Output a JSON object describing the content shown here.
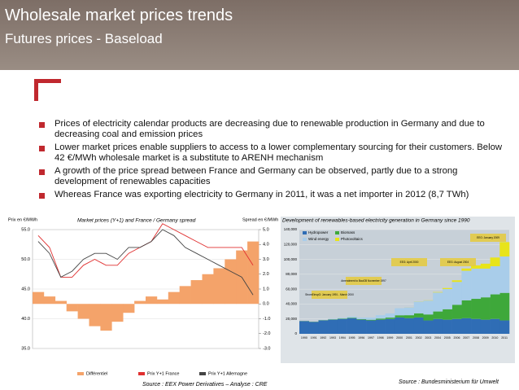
{
  "header": {
    "title": "Wholesale market prices trends",
    "subtitle": "Futures prices - Baseload"
  },
  "bullets": [
    "Prices of electricity calendar products are decreasing due to renewable production in Germany and due to decreasing coal and emission prices",
    "Lower market prices enable suppliers to access to a lower complementary sourcing for their customers. Below 42 €/MWh wholesale market is a substitute to ARENH mechanism",
    "A growth of the price spread between France and Germany can be observed, partly due to a strong development of renewables capacities",
    "Whereas France was exporting electricity to Germany in 2011, it was a net importer in 2012 (8,7 TWh)"
  ],
  "chart_data": [
    {
      "type": "line",
      "title": "Market prices (Y+1) and France / Germany spread",
      "ylabel": "Prix en €/MWh",
      "y2label": "Spread en €/MWh",
      "source": "Source : EEX Power Derivatives – Analyse : CRE",
      "ylim": [
        35,
        55
      ],
      "yticks": [
        {
          "value": 35,
          "label": "35.0"
        },
        {
          "value": 40,
          "label": "40.0"
        },
        {
          "value": 45,
          "label": "45.0"
        },
        {
          "value": 50,
          "label": "50.0"
        },
        {
          "value": 55,
          "label": "55.0"
        }
      ],
      "y2lim": [
        -3,
        5
      ],
      "y2ticks": [
        {
          "value": 5,
          "label": "5.0"
        },
        {
          "value": 4,
          "label": "4.0"
        },
        {
          "value": 3,
          "label": "3.0"
        },
        {
          "value": 2,
          "label": "2.0"
        },
        {
          "value": 1,
          "label": "1.0"
        },
        {
          "value": 0,
          "label": "0.0"
        },
        {
          "value": -1,
          "label": "-1.0"
        },
        {
          "value": -2,
          "label": "-2.0"
        },
        {
          "value": -3,
          "label": "-3.0"
        }
      ],
      "series": [
        {
          "name": "Différentiel",
          "color": "#f4a36a",
          "axis": "y2",
          "values": [
            0.8,
            0.5,
            0.2,
            -0.5,
            -1,
            -1.5,
            -1.8,
            -1.2,
            -0.6,
            0.2,
            0.5,
            0.3,
            0.8,
            1.2,
            1.6,
            2,
            2.4,
            3,
            3.6,
            4.2
          ]
        },
        {
          "name": "Prix Y+1 France",
          "color": "#e03030",
          "values": [
            54,
            52,
            47,
            47,
            49,
            50,
            49,
            49,
            51,
            52,
            53,
            56,
            55,
            54,
            53,
            52,
            52,
            52,
            52,
            49
          ]
        },
        {
          "name": "Prix Y+1 Allemagne",
          "color": "#444444",
          "values": [
            53,
            51,
            47,
            48,
            50,
            51,
            51,
            50,
            52,
            52,
            53,
            55,
            54,
            52,
            51,
            50,
            49,
            48,
            47,
            44
          ]
        }
      ]
    },
    {
      "type": "bar",
      "stacked": true,
      "title": "Development of renewables-based electricity generation in Germany since 1990",
      "source": "Source : Bundesministerium für Umwelt",
      "categories": [
        "1990",
        "1991",
        "1992",
        "1993",
        "1994",
        "1995",
        "1996",
        "1997",
        "1998",
        "1999",
        "2000",
        "2001",
        "2002",
        "2003",
        "2004",
        "2005",
        "2006",
        "2007",
        "2008",
        "2009",
        "2010",
        "2011"
      ],
      "ylim": [
        0,
        140000
      ],
      "yticks": [
        0,
        {
          "value": 20000,
          "label": "20,000"
        },
        {
          "value": 40000,
          "label": "40,000"
        },
        {
          "value": 60000,
          "label": "60,000"
        },
        {
          "value": 80000,
          "label": "80,000"
        },
        {
          "value": 100000,
          "label": "100,000"
        },
        {
          "value": 120000,
          "label": "120,000"
        },
        {
          "value": 140000,
          "label": "140,000"
        }
      ],
      "series": [
        {
          "name": "Hydropower",
          "color": "#2f6db5",
          "values": [
            17000,
            16000,
            18000,
            19000,
            20000,
            21000,
            19000,
            18000,
            19000,
            20000,
            22000,
            21000,
            22000,
            18000,
            20000,
            19000,
            20000,
            21000,
            20000,
            19000,
            20000,
            18000
          ]
        },
        {
          "name": "Biomass",
          "color": "#3ea83a",
          "values": [
            200,
            300,
            400,
            500,
            600,
            700,
            800,
            900,
            1500,
            1800,
            2900,
            4000,
            5500,
            8000,
            10000,
            14000,
            19000,
            24000,
            27000,
            30000,
            33000,
            37000
          ]
        },
        {
          "name": "Wind energy",
          "color": "#a9cdea",
          "values": [
            0,
            100,
            300,
            600,
            900,
            1500,
            2000,
            3000,
            4500,
            5500,
            9500,
            10500,
            15800,
            18700,
            25500,
            27200,
            30700,
            39700,
            40600,
            38600,
            37800,
            48900
          ]
        },
        {
          "name": "Photovoltaics",
          "color": "#e8e41a",
          "values": [
            0,
            0,
            0,
            0,
            0,
            0,
            0,
            0,
            0,
            0,
            0,
            100,
            200,
            300,
            600,
            1300,
            2200,
            3100,
            4400,
            6600,
            11700,
            19300
          ]
        }
      ],
      "annotations": [
        "EEG: January 2009",
        "EEG: August 2004",
        "EEG: April 2000",
        "Amendment to BauGB November 1997",
        "StromEinspG: January 1991 - March 2000"
      ]
    }
  ]
}
